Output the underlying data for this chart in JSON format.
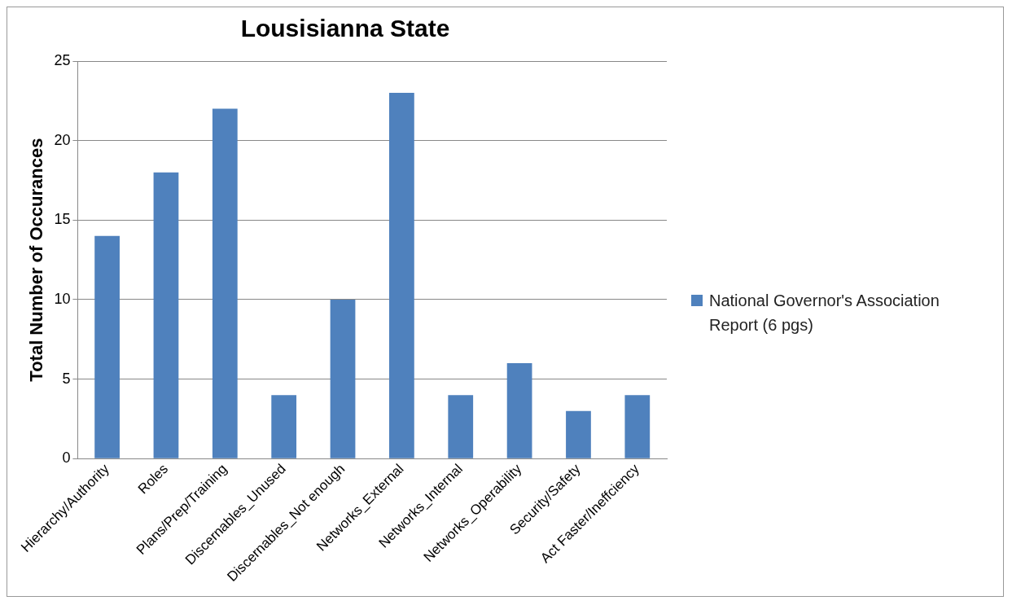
{
  "chart_data": {
    "type": "bar",
    "title": "Lousisianna State",
    "ylabel": "Total Number of Occurances",
    "categories": [
      "Hierarchy/Authority",
      "Roles",
      "Plans/Prep/Training",
      "Discernables_Unused",
      "Discernables_Not enough",
      "Networks_External",
      "Networks_Internal",
      "Networks_Operability",
      "Security/Safety",
      "Act Faster/Ineffciency"
    ],
    "series": [
      {
        "name": "National Governor's Association Report (6 pgs)",
        "color": "#4f81bd",
        "values": [
          14,
          18,
          22,
          4,
          10,
          23,
          4,
          6,
          3,
          4
        ]
      }
    ],
    "ylim": [
      0,
      25
    ],
    "yticks": [
      0,
      5,
      10,
      15,
      20,
      25
    ],
    "grid": "y",
    "legend": "right"
  }
}
